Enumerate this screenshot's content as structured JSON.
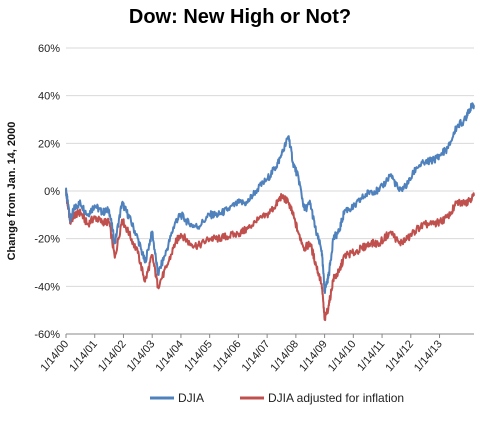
{
  "chart_data": {
    "type": "line",
    "title": "Dow: New High or Not?",
    "ylabel": "Change from Jan. 14, 2000",
    "xlabel": "",
    "ylim": [
      -60,
      60
    ],
    "yticks": [
      "60%",
      "40%",
      "20%",
      "0%",
      "-20%",
      "-40%",
      "-60%"
    ],
    "ytick_values": [
      60,
      40,
      20,
      0,
      -20,
      -40,
      -60
    ],
    "xticks": [
      "1/14/00",
      "1/14/01",
      "1/14/02",
      "1/14/03",
      "1/14/04",
      "1/14/05",
      "1/14/06",
      "1/14/07",
      "1/14/08",
      "1/14/09",
      "1/14/10",
      "1/14/11",
      "1/14/12",
      "1/14/13"
    ],
    "x_unit": "years since 1/14/00",
    "xlim": [
      0,
      14.2
    ],
    "grid": "horizontal",
    "legend": "bottom",
    "colors": {
      "DJIA": "#4f81bd",
      "DJIA adjusted for inflation": "#c0504d"
    },
    "series": [
      {
        "name": "DJIA",
        "x": [
          0,
          0.05,
          0.15,
          0.3,
          0.5,
          0.75,
          1.0,
          1.25,
          1.5,
          1.7,
          1.95,
          2.2,
          2.5,
          2.75,
          3.0,
          3.2,
          3.5,
          3.8,
          4.0,
          4.3,
          4.6,
          5.0,
          5.3,
          5.6,
          6.0,
          6.3,
          6.6,
          7.0,
          7.3,
          7.5,
          7.75,
          7.9,
          8.1,
          8.3,
          8.5,
          8.7,
          8.9,
          9.0,
          9.15,
          9.3,
          9.5,
          9.7,
          10.0,
          10.3,
          10.6,
          10.9,
          11.3,
          11.6,
          11.9,
          12.2,
          12.5,
          12.8,
          13.0,
          13.3,
          13.6,
          13.9,
          14.0,
          14.2
        ],
        "values": [
          0,
          -4,
          -12,
          -7,
          -5,
          -10,
          -6,
          -9,
          -8,
          -22,
          -5,
          -11,
          -20,
          -30,
          -17,
          -35,
          -25,
          -13,
          -10,
          -14,
          -15,
          -10,
          -10,
          -8,
          -5,
          -5,
          0,
          5,
          10,
          15,
          23,
          12,
          5,
          -8,
          -5,
          -17,
          -25,
          -42,
          -35,
          -20,
          -17,
          -8,
          -7,
          -3,
          0,
          0,
          7,
          0,
          3,
          10,
          12,
          13,
          15,
          18,
          27,
          30,
          34,
          36
        ]
      },
      {
        "name": "DJIA adjusted for inflation",
        "x": [
          0,
          0.05,
          0.15,
          0.3,
          0.5,
          0.75,
          1.0,
          1.25,
          1.5,
          1.7,
          1.95,
          2.2,
          2.5,
          2.75,
          3.0,
          3.2,
          3.5,
          3.8,
          4.0,
          4.3,
          4.6,
          5.0,
          5.3,
          5.6,
          6.0,
          6.3,
          6.6,
          7.0,
          7.3,
          7.5,
          7.75,
          7.9,
          8.1,
          8.3,
          8.5,
          8.7,
          8.9,
          9.0,
          9.15,
          9.3,
          9.5,
          9.7,
          10.0,
          10.3,
          10.6,
          10.9,
          11.3,
          11.6,
          11.9,
          12.2,
          12.5,
          12.8,
          13.0,
          13.3,
          13.6,
          13.9,
          14.0,
          14.2
        ],
        "values": [
          0,
          -5,
          -13,
          -10,
          -9,
          -14,
          -11,
          -13,
          -13,
          -28,
          -12,
          -18,
          -26,
          -38,
          -27,
          -40,
          -32,
          -22,
          -18,
          -22,
          -23,
          -20,
          -20,
          -19,
          -18,
          -16,
          -13,
          -10,
          -6,
          -2,
          -5,
          -10,
          -18,
          -24,
          -22,
          -31,
          -39,
          -54,
          -48,
          -37,
          -34,
          -27,
          -26,
          -24,
          -22,
          -22,
          -17,
          -22,
          -20,
          -16,
          -14,
          -14,
          -13,
          -11,
          -5,
          -5,
          -4,
          -2
        ]
      }
    ]
  }
}
